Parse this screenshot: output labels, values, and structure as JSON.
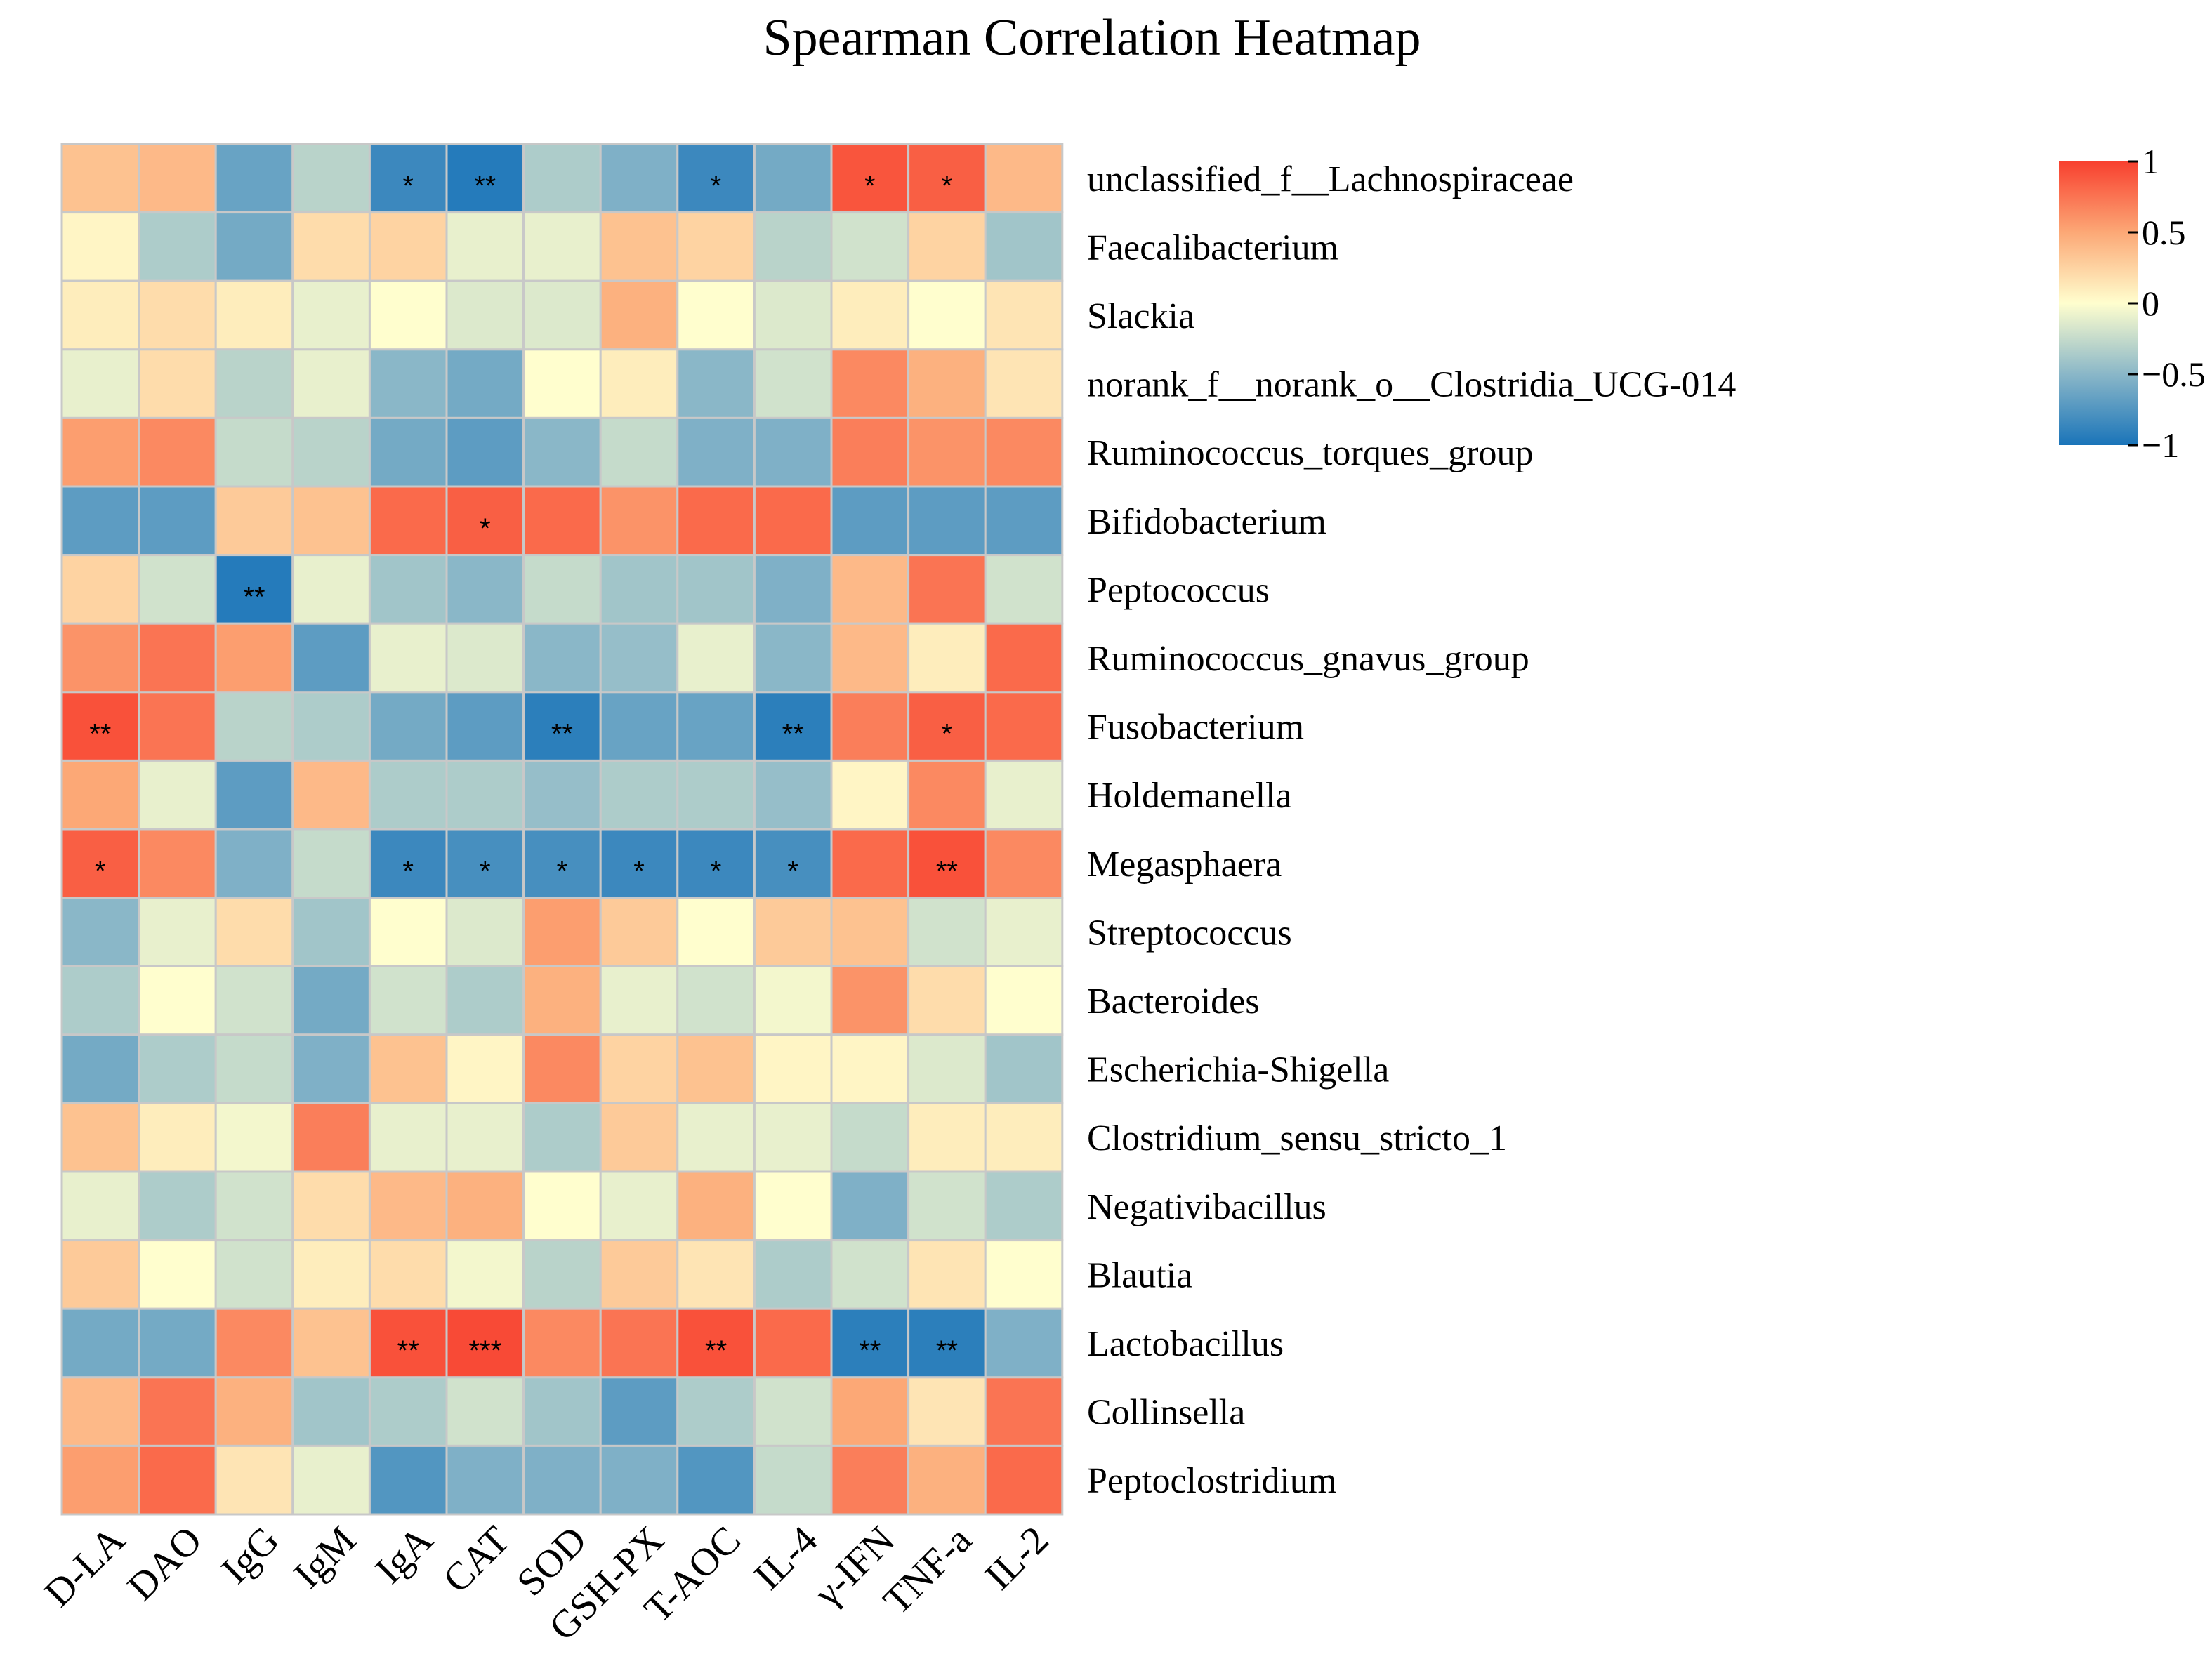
{
  "chart_data": {
    "type": "heatmap",
    "title": "Spearman Correlation Heatmap",
    "columns": [
      "D-LA",
      "DAO",
      "IgG",
      "IgM",
      "IgA",
      "CAT",
      "SOD",
      "GSH-PX",
      "T-AOC",
      "IL-4",
      "γ-IFN",
      "TNF-a",
      "IL-2"
    ],
    "rows": [
      "unclassified_f__Lachnospiraceae",
      "Faecalibacterium",
      "Slackia",
      "norank_f__norank_o__Clostridia_UCG-014",
      "Ruminococcus_torques_group",
      "Bifidobacterium",
      "Peptococcus",
      "Ruminococcus_gnavus_group",
      "Fusobacterium",
      "Holdemanella",
      "Megasphaera",
      "Streptococcus",
      "Bacteroides",
      "Escherichia-Shigella",
      "Clostridium_sensu_stricto_1",
      "Negativibacillus",
      "Blautia",
      "Lactobacillus",
      "Collinsella",
      "Peptoclostridium"
    ],
    "values": [
      [
        0.35,
        0.4,
        -0.65,
        -0.3,
        -0.85,
        -0.95,
        -0.35,
        -0.55,
        -0.85,
        -0.6,
        0.9,
        0.85,
        0.4
      ],
      [
        0.05,
        -0.35,
        -0.6,
        0.2,
        0.25,
        -0.1,
        -0.1,
        0.35,
        0.25,
        -0.3,
        -0.2,
        0.25,
        -0.4
      ],
      [
        0.1,
        0.2,
        0.1,
        -0.1,
        0.0,
        -0.15,
        -0.15,
        0.45,
        0.0,
        -0.15,
        0.1,
        0.0,
        0.15
      ],
      [
        -0.1,
        0.2,
        -0.3,
        -0.1,
        -0.5,
        -0.6,
        0.0,
        0.1,
        -0.5,
        -0.2,
        0.65,
        0.45,
        0.15
      ],
      [
        0.55,
        0.65,
        -0.25,
        -0.3,
        -0.6,
        -0.7,
        -0.5,
        -0.25,
        -0.55,
        -0.55,
        0.7,
        0.6,
        0.65
      ],
      [
        -0.7,
        -0.7,
        0.3,
        0.35,
        0.8,
        0.85,
        0.8,
        0.6,
        0.8,
        0.8,
        -0.7,
        -0.7,
        -0.7
      ],
      [
        0.25,
        -0.2,
        -0.95,
        -0.1,
        -0.4,
        -0.5,
        -0.25,
        -0.4,
        -0.4,
        -0.55,
        0.4,
        0.75,
        -0.2
      ],
      [
        0.6,
        0.75,
        0.55,
        -0.7,
        -0.1,
        -0.15,
        -0.5,
        -0.45,
        -0.1,
        -0.5,
        0.4,
        0.1,
        0.8
      ],
      [
        0.92,
        0.75,
        -0.3,
        -0.35,
        -0.6,
        -0.7,
        -0.92,
        -0.65,
        -0.65,
        -0.92,
        0.7,
        0.85,
        0.8
      ],
      [
        0.5,
        -0.1,
        -0.7,
        0.4,
        -0.35,
        -0.35,
        -0.45,
        -0.35,
        -0.35,
        -0.45,
        0.05,
        0.65,
        -0.1
      ],
      [
        0.85,
        0.65,
        -0.55,
        -0.25,
        -0.85,
        -0.8,
        -0.8,
        -0.85,
        -0.85,
        -0.8,
        0.8,
        0.92,
        0.65
      ],
      [
        -0.5,
        -0.1,
        0.2,
        -0.4,
        0.0,
        -0.15,
        0.55,
        0.3,
        0.0,
        0.3,
        0.35,
        -0.2,
        -0.1
      ],
      [
        -0.35,
        0.0,
        -0.2,
        -0.6,
        -0.2,
        -0.35,
        0.45,
        -0.1,
        -0.2,
        -0.05,
        0.6,
        0.2,
        0.0
      ],
      [
        -0.6,
        -0.35,
        -0.25,
        -0.55,
        0.35,
        0.05,
        0.65,
        0.25,
        0.35,
        0.05,
        0.05,
        -0.15,
        -0.4
      ],
      [
        0.35,
        0.1,
        -0.05,
        0.7,
        -0.1,
        -0.1,
        -0.35,
        0.3,
        -0.1,
        -0.1,
        -0.25,
        0.1,
        0.1
      ],
      [
        -0.1,
        -0.35,
        -0.2,
        0.2,
        0.4,
        0.45,
        0.0,
        -0.1,
        0.45,
        0.0,
        -0.55,
        -0.2,
        -0.35
      ],
      [
        0.3,
        0.0,
        -0.2,
        0.1,
        0.2,
        -0.05,
        -0.3,
        0.3,
        0.15,
        -0.35,
        -0.2,
        0.15,
        0.0
      ],
      [
        -0.6,
        -0.6,
        0.65,
        0.35,
        0.92,
        0.95,
        0.65,
        0.75,
        0.92,
        0.8,
        -0.92,
        -0.92,
        -0.55
      ],
      [
        0.4,
        0.75,
        0.45,
        -0.4,
        -0.35,
        -0.2,
        -0.4,
        -0.7,
        -0.35,
        -0.2,
        0.5,
        0.15,
        0.75
      ],
      [
        0.55,
        0.8,
        0.15,
        -0.1,
        -0.75,
        -0.55,
        -0.55,
        -0.55,
        -0.75,
        -0.25,
        0.7,
        0.45,
        0.8
      ]
    ],
    "significance": [
      [
        "",
        "",
        "",
        "",
        "*",
        "**",
        "",
        "",
        "*",
        "",
        "*",
        "*",
        ""
      ],
      [
        "",
        "",
        "",
        "",
        "",
        "",
        "",
        "",
        "",
        "",
        "",
        "",
        ""
      ],
      [
        "",
        "",
        "",
        "",
        "",
        "",
        "",
        "",
        "",
        "",
        "",
        "",
        ""
      ],
      [
        "",
        "",
        "",
        "",
        "",
        "",
        "",
        "",
        "",
        "",
        "",
        "",
        ""
      ],
      [
        "",
        "",
        "",
        "",
        "",
        "",
        "",
        "",
        "",
        "",
        "",
        "",
        ""
      ],
      [
        "",
        "",
        "",
        "",
        "",
        "*",
        "",
        "",
        "",
        "",
        "",
        "",
        ""
      ],
      [
        "",
        "",
        "**",
        "",
        "",
        "",
        "",
        "",
        "",
        "",
        "",
        "",
        ""
      ],
      [
        "",
        "",
        "",
        "",
        "",
        "",
        "",
        "",
        "",
        "",
        "",
        "",
        ""
      ],
      [
        "**",
        "",
        "",
        "",
        "",
        "",
        "**",
        "",
        "",
        "**",
        "",
        "*",
        ""
      ],
      [
        "",
        "",
        "",
        "",
        "",
        "",
        "",
        "",
        "",
        "",
        "",
        "",
        ""
      ],
      [
        "*",
        "",
        "",
        "",
        "*",
        "*",
        "*",
        "*",
        "*",
        "*",
        "",
        "**",
        ""
      ],
      [
        "",
        "",
        "",
        "",
        "",
        "",
        "",
        "",
        "",
        "",
        "",
        "",
        ""
      ],
      [
        "",
        "",
        "",
        "",
        "",
        "",
        "",
        "",
        "",
        "",
        "",
        "",
        ""
      ],
      [
        "",
        "",
        "",
        "",
        "",
        "",
        "",
        "",
        "",
        "",
        "",
        "",
        ""
      ],
      [
        "",
        "",
        "",
        "",
        "",
        "",
        "",
        "",
        "",
        "",
        "",
        "",
        ""
      ],
      [
        "",
        "",
        "",
        "",
        "",
        "",
        "",
        "",
        "",
        "",
        "",
        "",
        ""
      ],
      [
        "",
        "",
        "",
        "",
        "",
        "",
        "",
        "",
        "",
        "",
        "",
        "",
        ""
      ],
      [
        "",
        "",
        "",
        "",
        "**",
        "***",
        "",
        "",
        "**",
        "",
        "**",
        "**",
        ""
      ],
      [
        "",
        "",
        "",
        "",
        "",
        "",
        "",
        "",
        "",
        "",
        "",
        "",
        ""
      ],
      [
        "",
        "",
        "",
        "",
        "",
        "",
        "",
        "",
        "",
        "",
        "",
        "",
        ""
      ]
    ],
    "colorbar": {
      "range": [
        -1,
        1
      ],
      "ticks": [
        1,
        0.5,
        0,
        -0.5,
        -1
      ],
      "tick_labels": [
        "1",
        "0.5",
        "0",
        "−0.5",
        "−1"
      ],
      "colors": [
        "#1a74b9",
        "#fffece",
        "#f8402f"
      ]
    },
    "legend": "right"
  }
}
